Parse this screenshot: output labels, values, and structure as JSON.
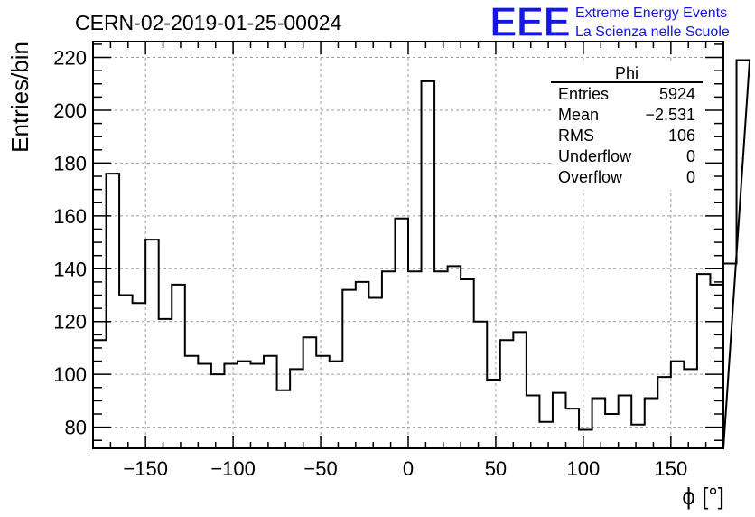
{
  "chart_data": {
    "type": "histogram",
    "title": "CERN-02-2019-01-25-00024",
    "xlabel": "ϕ [°]",
    "ylabel": "Entries/bin",
    "xlim": [
      -180,
      180
    ],
    "ylim": [
      72,
      226
    ],
    "grid": true,
    "x_ticks": [
      -150,
      -100,
      -50,
      0,
      50,
      100,
      150
    ],
    "x_tick_labels": [
      "−150",
      "−100",
      "−50",
      "0",
      "50",
      "100",
      "150"
    ],
    "y_ticks": [
      80,
      100,
      120,
      140,
      160,
      180,
      200,
      220
    ],
    "y_tick_labels": [
      "80",
      "100",
      "120",
      "140",
      "160",
      "180",
      "200",
      "220"
    ],
    "bin_width": 7.5,
    "values": [
      113,
      176,
      130,
      127,
      151,
      121,
      134,
      107,
      104,
      100,
      104,
      105,
      104,
      107,
      94,
      102,
      114,
      107,
      105,
      132,
      135,
      129,
      139,
      159,
      139,
      211,
      139,
      141,
      136,
      120,
      98,
      113,
      116,
      92,
      82,
      93,
      87,
      79,
      91,
      85,
      92,
      81,
      91,
      99,
      105,
      102,
      138,
      134,
      142,
      219
    ],
    "stats": {
      "name": "Phi",
      "rows": [
        {
          "label": "Entries",
          "value": "5924"
        },
        {
          "label": "Mean",
          "value": "−2.531"
        },
        {
          "label": "RMS",
          "value": "106"
        },
        {
          "label": "Underflow",
          "value": "0"
        },
        {
          "label": "Overflow",
          "value": "0"
        }
      ]
    }
  },
  "logo": {
    "mark": "EEE",
    "line1": "Extreme Energy Events",
    "line2": "La Scienza nelle Scuole"
  }
}
